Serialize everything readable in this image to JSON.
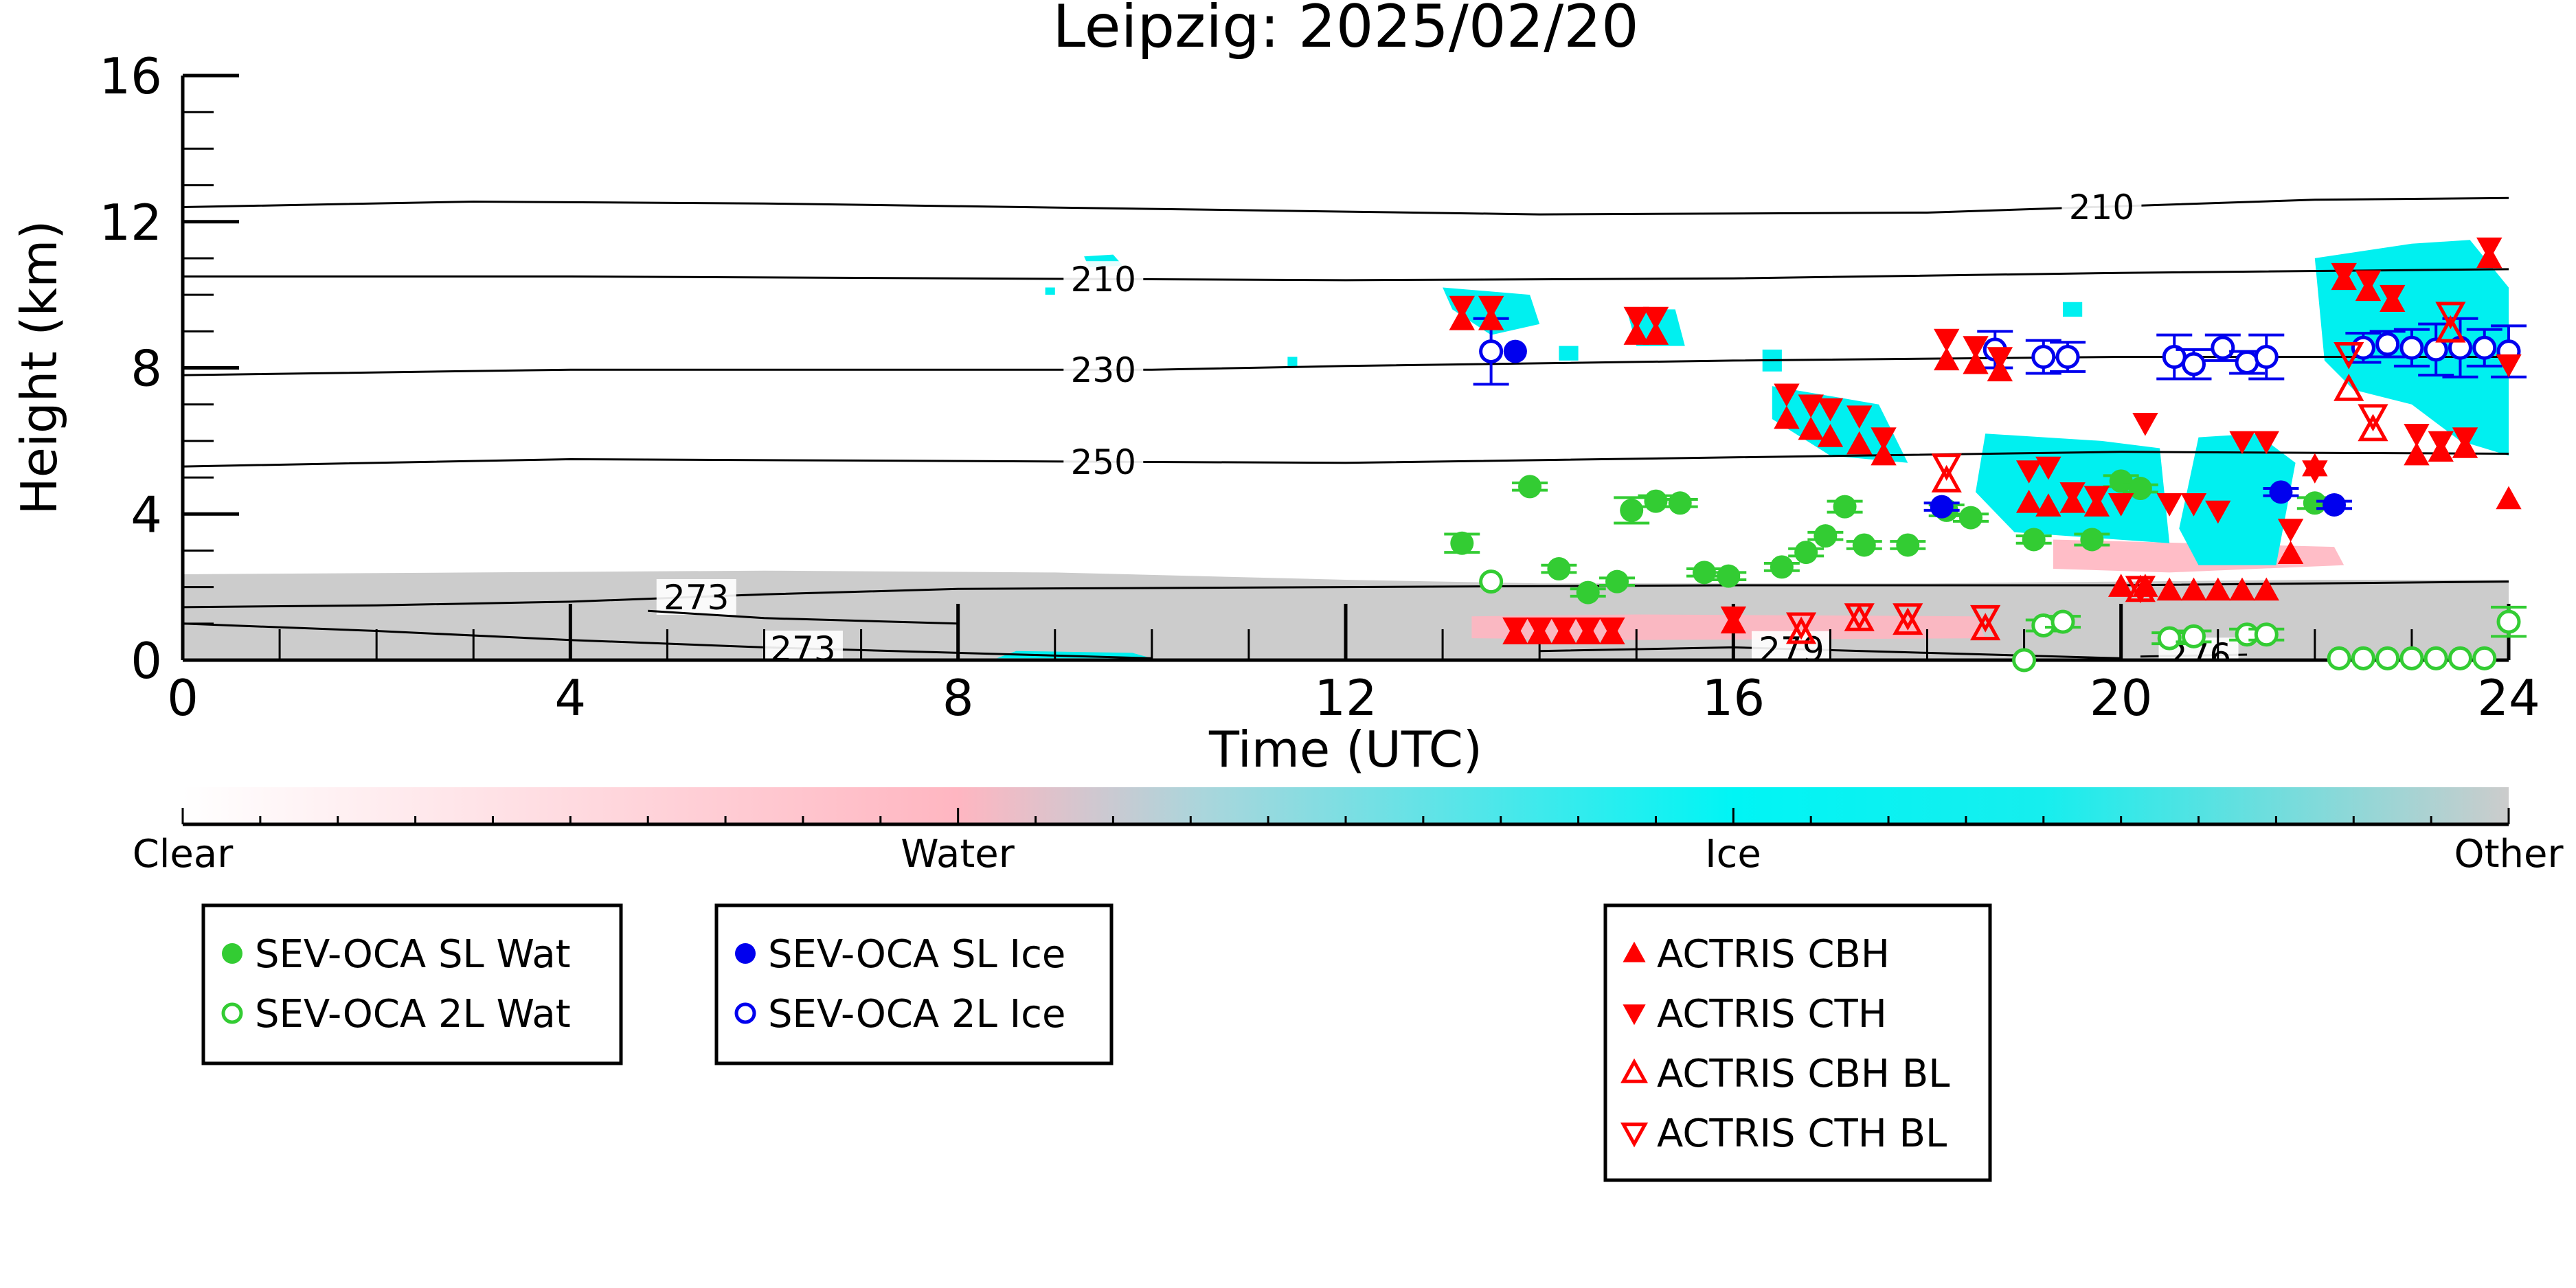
{
  "chart_data": {
    "type": "scatter",
    "title": "Leipzig: 2025/02/20",
    "xlabel": "Time (UTC)",
    "ylabel": "Height (km)",
    "xlim": [
      0,
      24
    ],
    "ylim": [
      0,
      16
    ],
    "x_ticks": [
      0,
      4,
      8,
      12,
      16,
      20,
      24
    ],
    "y_ticks": [
      0,
      4,
      8,
      12,
      16
    ],
    "x_tick_labels": [
      "0",
      "4",
      "8",
      "12",
      "16",
      "20",
      "24"
    ],
    "y_tick_labels": [
      "0",
      "4",
      "8",
      "12",
      "16"
    ],
    "grid": false,
    "colorbar": {
      "labels": [
        "Clear",
        "Water",
        "Ice",
        "Other"
      ],
      "colors": [
        "#ffffff",
        "#ffb6c1",
        "#00f5f5",
        "#cccccc"
      ]
    },
    "colors": {
      "sev_water": "#33cc33",
      "sev_ice": "#0000ee",
      "actris": "#ff0000",
      "ice_region": "#00f0f0",
      "water_region": "#ffb6c1",
      "other_region": "#cccccc"
    },
    "contours": [
      {
        "label": "210",
        "label_x": 19.8,
        "points": [
          [
            0,
            12.4
          ],
          [
            3,
            12.55
          ],
          [
            6,
            12.5
          ],
          [
            10,
            12.35
          ],
          [
            14,
            12.2
          ],
          [
            18,
            12.25
          ],
          [
            22,
            12.6
          ],
          [
            24,
            12.65
          ]
        ]
      },
      {
        "label": "210",
        "label_x": 9.5,
        "points": [
          [
            0,
            10.5
          ],
          [
            4,
            10.5
          ],
          [
            8,
            10.45
          ],
          [
            12,
            10.4
          ],
          [
            16,
            10.45
          ],
          [
            20,
            10.6
          ],
          [
            24,
            10.7
          ]
        ]
      },
      {
        "label": "230",
        "label_x": 9.5,
        "points": [
          [
            0,
            7.8
          ],
          [
            4,
            7.95
          ],
          [
            8,
            7.95
          ],
          [
            10,
            7.95
          ],
          [
            12,
            8.05
          ],
          [
            16,
            8.2
          ],
          [
            20,
            8.3
          ],
          [
            24,
            8.3
          ]
        ]
      },
      {
        "label": "250",
        "label_x": 9.5,
        "points": [
          [
            0,
            5.3
          ],
          [
            4,
            5.5
          ],
          [
            8,
            5.45
          ],
          [
            12,
            5.4
          ],
          [
            16,
            5.55
          ],
          [
            20,
            5.7
          ],
          [
            24,
            5.65
          ]
        ]
      },
      {
        "label": "273",
        "label_x": 5.3,
        "points": [
          [
            0,
            1.45
          ],
          [
            2,
            1.5
          ],
          [
            4,
            1.6
          ],
          [
            6,
            1.8
          ],
          [
            8,
            1.95
          ],
          [
            12,
            2.0
          ],
          [
            16,
            2.05
          ],
          [
            20,
            2.05
          ],
          [
            24,
            2.15
          ]
        ]
      },
      {
        "label": "273",
        "label_x": 0,
        "points": [
          [
            4.8,
            1.35
          ],
          [
            6,
            1.15
          ],
          [
            8,
            1.0
          ]
        ]
      },
      {
        "label": "273",
        "label_x": 6.4,
        "points": [
          [
            0,
            1.0
          ],
          [
            2,
            0.8
          ],
          [
            4,
            0.55
          ],
          [
            6,
            0.35
          ],
          [
            8,
            0.2
          ],
          [
            10,
            0.05
          ]
        ]
      },
      {
        "label": "279",
        "label_x": 16.6,
        "points": [
          [
            14,
            0.25
          ],
          [
            16,
            0.35
          ],
          [
            18,
            0.2
          ],
          [
            20,
            0.05
          ]
        ]
      },
      {
        "label": "276",
        "label_x": 20.8,
        "points": [
          [
            20.2,
            0.1
          ],
          [
            21.3,
            0.15
          ]
        ]
      }
    ],
    "series": [
      {
        "name": "SEV-OCA SL Wat",
        "marker": "circle-filled",
        "color": "#33cc33",
        "x": [
          13.2,
          13.9,
          14.2,
          14.5,
          14.8,
          14.95,
          15.2,
          15.45,
          15.7,
          15.95,
          16.5,
          16.75,
          16.95,
          17.15,
          17.35,
          17.8,
          18.2,
          18.45,
          19.1,
          19.7,
          20.0,
          20.2,
          22.0
        ],
        "y": [
          3.2,
          4.75,
          2.5,
          1.85,
          2.15,
          4.1,
          4.35,
          4.3,
          2.4,
          2.3,
          2.55,
          2.95,
          3.4,
          4.2,
          3.15,
          3.15,
          4.1,
          3.9,
          3.3,
          3.3,
          4.9,
          4.7,
          4.3
        ],
        "yerr": [
          0.25,
          0.1,
          0.1,
          0.1,
          0.1,
          0.35,
          0.15,
          0.1,
          0.1,
          0.1,
          0.1,
          0.1,
          0.1,
          0.15,
          0.1,
          0.1,
          0.15,
          0.1,
          0.1,
          0.15,
          0.15,
          0.1,
          0.15
        ]
      },
      {
        "name": "SEV-OCA 2L Wat",
        "marker": "circle-open",
        "color": "#33cc33",
        "x": [
          13.5,
          19.0,
          19.2,
          19.4,
          20.5,
          20.75,
          21.3,
          21.5,
          22.25,
          22.5,
          22.75,
          23.0,
          23.25,
          23.5,
          23.75,
          24.0
        ],
        "y": [
          2.15,
          0.0,
          0.95,
          1.05,
          0.6,
          0.65,
          0.7,
          0.7,
          0.05,
          0.05,
          0.05,
          0.05,
          0.05,
          0.05,
          0.05,
          1.05
        ],
        "yerr": [
          0,
          0,
          0.15,
          0.15,
          0.15,
          0.15,
          0.15,
          0.15,
          0,
          0,
          0,
          0,
          0,
          0,
          0,
          0.4
        ]
      },
      {
        "name": "SEV-OCA SL Ice",
        "marker": "circle-filled",
        "color": "#0000ee",
        "x": [
          13.75,
          18.15,
          21.65,
          22.2
        ],
        "y": [
          8.45,
          4.2,
          4.6,
          4.25
        ],
        "yerr": [
          0,
          0.1,
          0.1,
          0.1
        ]
      },
      {
        "name": "SEV-OCA 2L Ice",
        "marker": "circle-open",
        "color": "#0000ee",
        "x": [
          13.5,
          18.7,
          19.2,
          19.45,
          20.55,
          20.75,
          21.05,
          21.3,
          21.5,
          22.5,
          22.75,
          23.0,
          23.25,
          23.5,
          23.75,
          24.0
        ],
        "y": [
          8.45,
          8.5,
          8.3,
          8.3,
          8.3,
          8.1,
          8.55,
          8.15,
          8.3,
          8.55,
          8.65,
          8.55,
          8.5,
          8.55,
          8.55,
          8.45
        ],
        "yerr": [
          0.9,
          0.5,
          0.45,
          0.4,
          0.6,
          0.4,
          0.35,
          0.3,
          0.6,
          0.4,
          0.35,
          0.5,
          0.7,
          0.8,
          0.5,
          0.7
        ]
      },
      {
        "name": "ACTRIS CBH",
        "marker": "triangle-up-filled",
        "color": "#ff0000",
        "x": [
          13.2,
          13.5,
          13.75,
          14.0,
          14.25,
          14.5,
          14.75,
          15.0,
          15.2,
          16.0,
          16.55,
          16.8,
          17.0,
          17.3,
          17.55,
          18.2,
          18.5,
          18.75,
          19.05,
          19.25,
          19.5,
          19.75,
          20.0,
          20.25,
          20.5,
          20.75,
          21.0,
          21.25,
          21.5,
          21.75,
          22.0,
          22.3,
          22.55,
          22.8,
          23.05,
          23.3,
          23.55,
          23.8,
          24.0
        ],
        "y": [
          9.3,
          9.3,
          0.7,
          0.7,
          0.7,
          0.7,
          0.7,
          8.9,
          8.9,
          1.0,
          6.6,
          6.3,
          6.1,
          5.9,
          5.6,
          8.2,
          8.1,
          7.9,
          4.3,
          4.2,
          4.3,
          4.2,
          2.0,
          2.0,
          1.9,
          1.9,
          1.9,
          1.9,
          1.9,
          2.9,
          5.3,
          10.4,
          10.1,
          9.8,
          5.6,
          5.7,
          5.8,
          11.0,
          4.4
        ],
        "yerr": []
      },
      {
        "name": "ACTRIS CTH",
        "marker": "triangle-down-filled",
        "color": "#ff0000",
        "x": [
          13.2,
          13.5,
          13.75,
          14.0,
          14.25,
          14.5,
          14.75,
          15.0,
          15.2,
          16.0,
          16.55,
          16.8,
          17.0,
          17.3,
          17.55,
          18.2,
          18.5,
          18.75,
          19.05,
          19.25,
          19.5,
          19.75,
          20.0,
          20.25,
          20.5,
          20.75,
          21.0,
          21.25,
          21.5,
          21.75,
          22.0,
          22.3,
          22.55,
          22.8,
          23.05,
          23.3,
          23.55,
          23.8,
          24.0
        ],
        "y": [
          9.7,
          9.7,
          0.9,
          0.9,
          0.9,
          0.9,
          0.9,
          9.4,
          9.4,
          1.2,
          7.3,
          7.0,
          6.9,
          6.7,
          6.1,
          8.8,
          8.6,
          8.3,
          5.2,
          5.3,
          4.6,
          4.5,
          4.3,
          6.5,
          4.3,
          4.3,
          4.1,
          6.0,
          6.0,
          3.6,
          5.2,
          10.6,
          10.4,
          10.0,
          6.2,
          6.0,
          6.1,
          11.3,
          8.1
        ],
        "yerr": []
      },
      {
        "name": "ACTRIS CBH BL",
        "marker": "triangle-up-open",
        "color": "#ff0000",
        "x": [
          16.7,
          17.3,
          17.8,
          18.2,
          18.6,
          20.2,
          22.35,
          22.6,
          23.4
        ],
        "y": [
          0.75,
          1.1,
          1.0,
          4.9,
          0.85,
          1.9,
          7.4,
          6.3,
          9.0
        ],
        "yerr": []
      },
      {
        "name": "ACTRIS CTH BL",
        "marker": "triangle-down-open",
        "color": "#ff0000",
        "x": [
          16.7,
          17.3,
          17.8,
          18.2,
          18.6,
          20.2,
          22.35,
          22.6,
          23.4
        ],
        "y": [
          1.0,
          1.25,
          1.25,
          5.35,
          1.2,
          2.0,
          8.4,
          6.7,
          9.5
        ],
        "yerr": []
      }
    ],
    "legends": [
      {
        "entries": [
          "SEV-OCA SL Wat",
          "SEV-OCA 2L Wat"
        ]
      },
      {
        "entries": [
          "SEV-OCA SL Ice",
          "SEV-OCA 2L Ice"
        ]
      },
      {
        "entries": [
          "ACTRIS CBH",
          "ACTRIS CTH",
          "ACTRIS CBH BL",
          "ACTRIS CTH BL"
        ]
      }
    ]
  }
}
